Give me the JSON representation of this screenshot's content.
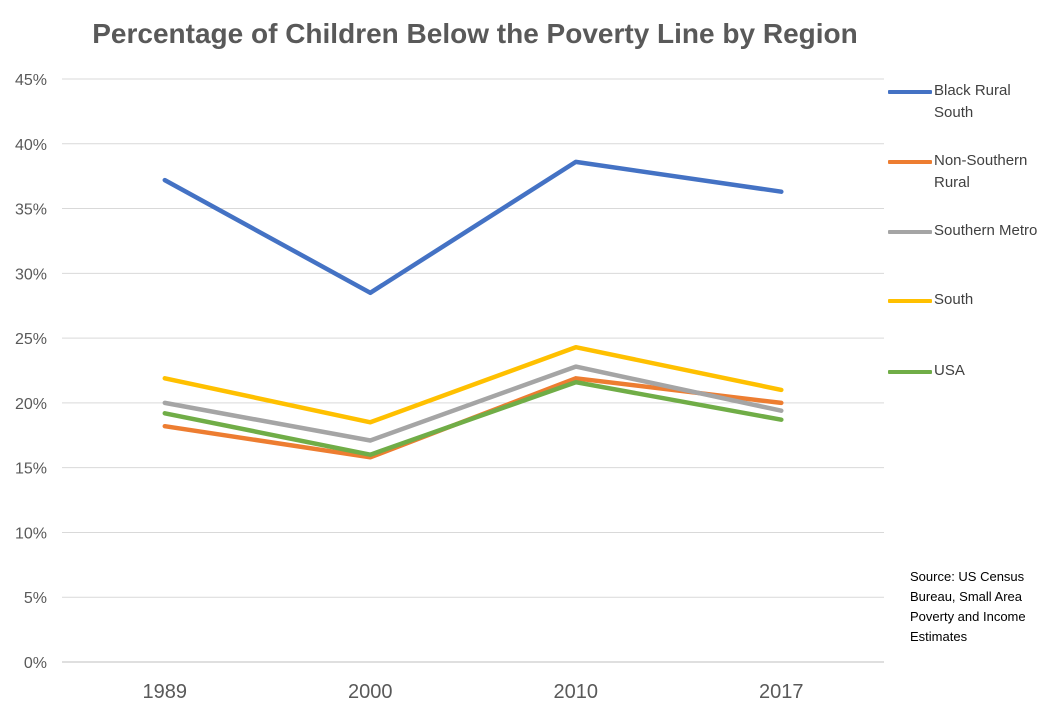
{
  "chart_data": {
    "type": "line",
    "title": "Percentage of Children Below the Poverty Line by Region",
    "categories": [
      "1989",
      "2000",
      "2010",
      "2017"
    ],
    "ylim": [
      0,
      45
    ],
    "yticks": [
      "0%",
      "5%",
      "10%",
      "15%",
      "20%",
      "25%",
      "30%",
      "35%",
      "40%",
      "45%"
    ],
    "grid": true,
    "legend_position": "right",
    "series": [
      {
        "name": "Black Rural South",
        "color": "#4472C4",
        "values": [
          37.2,
          28.5,
          38.6,
          36.3
        ]
      },
      {
        "name": "Non-Southern Rural",
        "color": "#ED7D31",
        "values": [
          18.2,
          15.8,
          21.9,
          20.0
        ]
      },
      {
        "name": "Southern Metro",
        "color": "#A5A5A5",
        "values": [
          20.0,
          17.1,
          22.8,
          19.4
        ]
      },
      {
        "name": "South",
        "color": "#FFC000",
        "values": [
          21.9,
          18.5,
          24.3,
          21.0
        ]
      },
      {
        "name": "USA",
        "color": "#70AD47",
        "values": [
          19.2,
          16.0,
          21.6,
          18.7
        ]
      }
    ],
    "annotation": "Source: US Census Bureau, Small Area Poverty and Income Estimates"
  }
}
